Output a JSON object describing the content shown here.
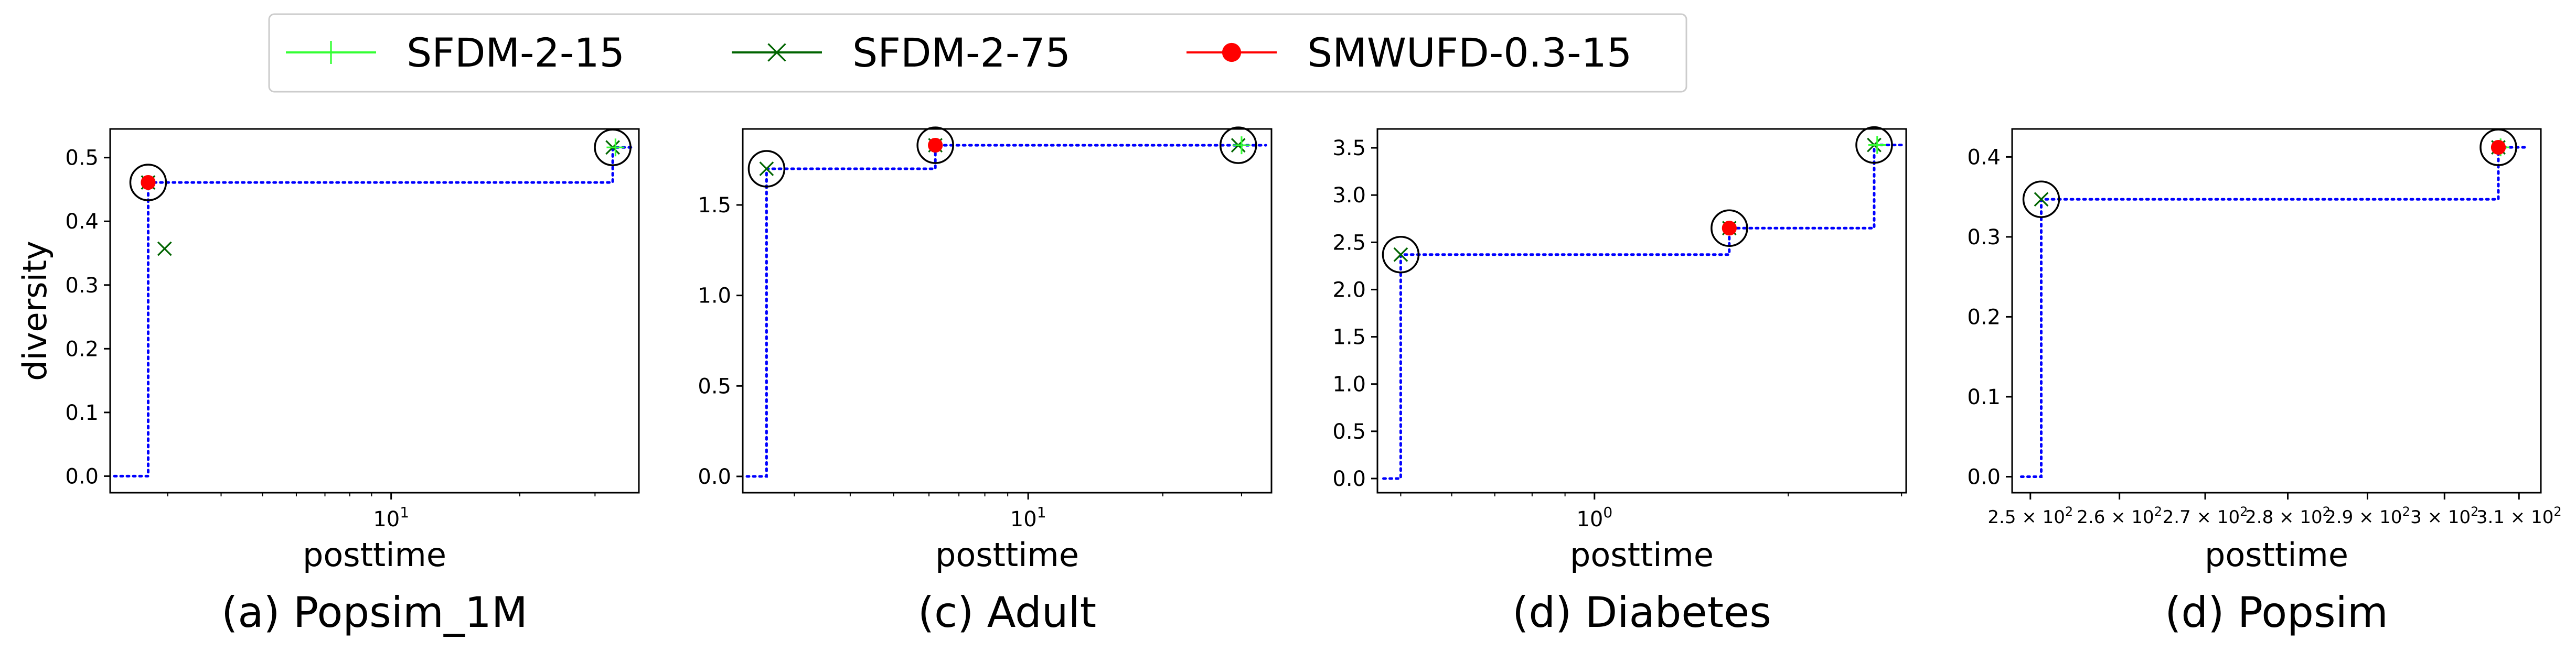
{
  "legend": {
    "entries": [
      {
        "label": "SFDM-2-15",
        "color": "#33ff33",
        "marker": "plus"
      },
      {
        "label": "SFDM-2-75",
        "color": "#006400",
        "marker": "x"
      },
      {
        "label": "SMWUFD-0.3-15",
        "color": "#ff0000",
        "marker": "circle"
      }
    ]
  },
  "frontier_color": "#0000ff",
  "chart_data": [
    {
      "type": "scatter",
      "caption": "(a) Popsim_1M",
      "xlabel": "posttime",
      "ylabel": "diversity",
      "xscale": "log",
      "xlim": [
        2.2,
        38
      ],
      "ylim": [
        -0.026,
        0.545
      ],
      "yticks": [
        "0.0",
        "0.1",
        "0.2",
        "0.3",
        "0.4",
        "0.5"
      ],
      "ytick_values": [
        0.0,
        0.1,
        0.2,
        0.3,
        0.4,
        0.5
      ],
      "xticks": [
        {
          "value": 10,
          "base": "10",
          "exp": "1"
        }
      ],
      "series": [
        {
          "name": "SFDM-2-15",
          "points": [
            [
              33.5,
              0.516
            ]
          ]
        },
        {
          "name": "SFDM-2-75",
          "points": [
            [
              2.7,
              0.461
            ],
            [
              2.95,
              0.357
            ],
            [
              33.0,
              0.516
            ]
          ]
        },
        {
          "name": "SMWUFD-0.3-15",
          "points": [
            [
              2.7,
              0.461
            ]
          ]
        }
      ],
      "pareto": [
        [
          2.7,
          0.461
        ],
        [
          33.0,
          0.516
        ]
      ],
      "frontier_steps": [
        [
          2.25,
          0.0
        ],
        [
          2.7,
          0.0
        ],
        [
          2.7,
          0.461
        ],
        [
          33.0,
          0.461
        ],
        [
          33.0,
          0.516
        ],
        [
          37,
          0.516
        ]
      ]
    },
    {
      "type": "scatter",
      "caption": "(c) Adult",
      "xlabel": "posttime",
      "ylabel": "",
      "xscale": "log",
      "xlim": [
        2.3,
        35
      ],
      "ylim": [
        -0.09,
        1.92
      ],
      "yticks": [
        "0.0",
        "0.5",
        "1.0",
        "1.5"
      ],
      "ytick_values": [
        0.0,
        0.5,
        1.0,
        1.5
      ],
      "xticks": [
        {
          "value": 10,
          "base": "10",
          "exp": "1"
        }
      ],
      "series": [
        {
          "name": "SFDM-2-15",
          "points": [
            [
              30.0,
              1.83
            ]
          ]
        },
        {
          "name": "SFDM-2-75",
          "points": [
            [
              2.6,
              1.7
            ],
            [
              6.2,
              1.83
            ],
            [
              29.5,
              1.83
            ]
          ]
        },
        {
          "name": "SMWUFD-0.3-15",
          "points": [
            [
              6.2,
              1.83
            ]
          ]
        }
      ],
      "pareto": [
        [
          2.6,
          1.7
        ],
        [
          6.2,
          1.83
        ],
        [
          29.5,
          1.83
        ]
      ],
      "frontier_steps": [
        [
          2.35,
          0.0
        ],
        [
          2.6,
          0.0
        ],
        [
          2.6,
          1.7
        ],
        [
          6.2,
          1.7
        ],
        [
          6.2,
          1.83
        ],
        [
          34,
          1.83
        ]
      ]
    },
    {
      "type": "scatter",
      "caption": "(d) Diabetes",
      "xlabel": "posttime",
      "ylabel": "",
      "xscale": "log",
      "xlim": [
        0.46,
        3.05
      ],
      "ylim": [
        -0.15,
        3.7
      ],
      "yticks": [
        "0.0",
        "0.5",
        "1.0",
        "1.5",
        "2.0",
        "2.5",
        "3.0",
        "3.5"
      ],
      "ytick_values": [
        0.0,
        0.5,
        1.0,
        1.5,
        2.0,
        2.5,
        3.0,
        3.5
      ],
      "xticks": [
        {
          "value": 1,
          "base": "10",
          "exp": "0"
        }
      ],
      "series": [
        {
          "name": "SFDM-2-15",
          "points": [
            [
              2.75,
              3.53
            ]
          ]
        },
        {
          "name": "SFDM-2-75",
          "points": [
            [
              0.5,
              2.37
            ],
            [
              1.62,
              2.65
            ],
            [
              2.72,
              3.53
            ]
          ]
        },
        {
          "name": "SMWUFD-0.3-15",
          "points": [
            [
              1.62,
              2.65
            ]
          ]
        }
      ],
      "pareto": [
        [
          0.5,
          2.37
        ],
        [
          1.62,
          2.65
        ],
        [
          2.72,
          3.53
        ]
      ],
      "frontier_steps": [
        [
          0.47,
          0.0
        ],
        [
          0.5,
          0.0
        ],
        [
          0.5,
          2.37
        ],
        [
          1.62,
          2.37
        ],
        [
          1.62,
          2.65
        ],
        [
          2.72,
          2.65
        ],
        [
          2.72,
          3.53
        ],
        [
          3.0,
          3.53
        ]
      ]
    },
    {
      "type": "scatter",
      "caption": "(d) Popsim",
      "xlabel": "posttime",
      "ylabel": "",
      "xscale": "log",
      "xlim": [
        248,
        313
      ],
      "ylim": [
        -0.02,
        0.435
      ],
      "yticks": [
        "0.0",
        "0.1",
        "0.2",
        "0.3",
        "0.4"
      ],
      "ytick_values": [
        0.0,
        0.1,
        0.2,
        0.3,
        0.4
      ],
      "xticks": [
        {
          "value": 250,
          "base": "2.5 × 10",
          "exp": "2"
        },
        {
          "value": 260,
          "base": "2.6 × 10",
          "exp": "2"
        },
        {
          "value": 270,
          "base": "2.7 × 10",
          "exp": "2"
        },
        {
          "value": 280,
          "base": "2.8 × 10",
          "exp": "2"
        },
        {
          "value": 290,
          "base": "2.9 × 10",
          "exp": "2"
        },
        {
          "value": 300,
          "base": "3 × 10",
          "exp": "2"
        },
        {
          "value": 310,
          "base": "3.1 × 10",
          "exp": "2"
        }
      ],
      "series": [
        {
          "name": "SFDM-2-15",
          "points": [
            [
              307.5,
              0.412
            ]
          ]
        },
        {
          "name": "SFDM-2-75",
          "points": [
            [
              251.2,
              0.347
            ],
            [
              307.2,
              0.412
            ]
          ]
        },
        {
          "name": "SMWUFD-0.3-15",
          "points": [
            [
              307.2,
              0.412
            ]
          ]
        }
      ],
      "pareto": [
        [
          251.2,
          0.347
        ],
        [
          307.2,
          0.412
        ]
      ],
      "frontier_steps": [
        [
          249,
          0.0
        ],
        [
          251.2,
          0.0
        ],
        [
          251.2,
          0.347
        ],
        [
          307.2,
          0.347
        ],
        [
          307.2,
          0.412
        ],
        [
          311,
          0.412
        ]
      ]
    }
  ]
}
